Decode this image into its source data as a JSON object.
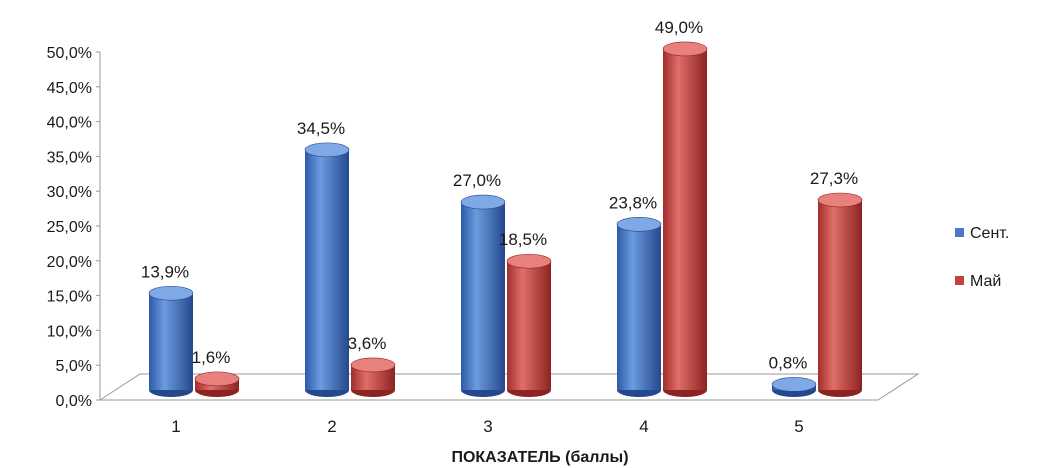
{
  "chart_data": {
    "type": "bar",
    "style": "3d-cylinder",
    "categories": [
      "1",
      "2",
      "3",
      "4",
      "5"
    ],
    "series": [
      {
        "name": "Сент.",
        "color": "#4a78c4",
        "values": [
          13.9,
          34.5,
          27.0,
          23.8,
          0.8
        ],
        "labels": [
          "13,9%",
          "34,5%",
          "27,0%",
          "23,8%",
          "0,8%"
        ]
      },
      {
        "name": "Май",
        "color": "#c24440",
        "values": [
          1.6,
          3.6,
          18.5,
          49.0,
          27.3
        ],
        "labels": [
          "1,6%",
          "3,6%",
          "18,5%",
          "49,0%",
          "27,3%"
        ]
      }
    ],
    "ylim": [
      0,
      50
    ],
    "yticks": [
      "0,0%",
      "5,0%",
      "10,0%",
      "15,0%",
      "20,0%",
      "25,0%",
      "30,0%",
      "35,0%",
      "40,0%",
      "45,0%",
      "50,0%"
    ],
    "xlabel": "ПОКАЗАТЕЛЬ (баллы)",
    "ylabel": "",
    "title": "",
    "grid": false,
    "legend": "right"
  }
}
